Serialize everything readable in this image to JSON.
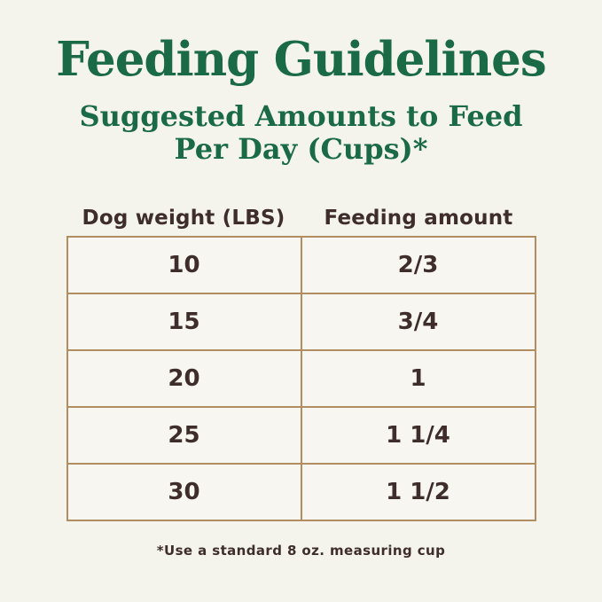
{
  "page": {
    "title": "Feeding Guidelines",
    "subtitle_line1": "Suggested Amounts to Feed",
    "subtitle_line2": "Per Day (Cups)*",
    "footnote": "*Use a standard 8 oz. measuring cup"
  },
  "colors": {
    "background": "#f4f4ed",
    "title_green": "#1a6a46",
    "table_border": "#b28d61",
    "cell_bg": "#f7f6f0",
    "text_dark": "#3e2d2a"
  },
  "chart_data": {
    "type": "table",
    "title": "Feeding Guidelines",
    "subtitle": "Suggested Amounts to Feed Per Day (Cups)*",
    "columns": [
      "Dog weight (LBS)",
      "Feeding amount"
    ],
    "rows": [
      {
        "weight": "10",
        "amount": "2/3"
      },
      {
        "weight": "15",
        "amount": "3/4"
      },
      {
        "weight": "20",
        "amount": "1"
      },
      {
        "weight": "25",
        "amount": "1 1/4"
      },
      {
        "weight": "30",
        "amount": "1 1/2"
      }
    ],
    "footnote": "*Use a standard 8 oz. measuring cup",
    "layout": "two equal centered columns, tan grid borders, cream background"
  }
}
